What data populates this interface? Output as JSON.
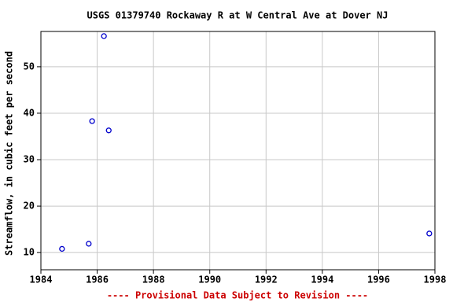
{
  "chart_data": {
    "type": "scatter",
    "title": "USGS 01379740 Rockaway R at W Central Ave at Dover NJ",
    "y_label": "Streamflow, in cubic feet per second",
    "footnote": "---- Provisional Data Subject to Revision ----",
    "series": [
      {
        "color": "#0000cc",
        "x": [
          1984.75,
          1985.7,
          1985.82,
          1986.24,
          1986.41,
          1997.8
        ],
        "values": [
          10.8,
          11.9,
          38.3,
          56.6,
          36.3,
          14.1
        ]
      }
    ],
    "xlim": [
      1984,
      1998
    ],
    "xticks": [
      1984,
      1986,
      1988,
      1990,
      1992,
      1994,
      1996,
      1998
    ],
    "ylim": [
      6.3,
      57.6
    ],
    "yticks": [
      10,
      20,
      30,
      40,
      50
    ],
    "grid": true,
    "footnote_color": "#cc0000"
  }
}
